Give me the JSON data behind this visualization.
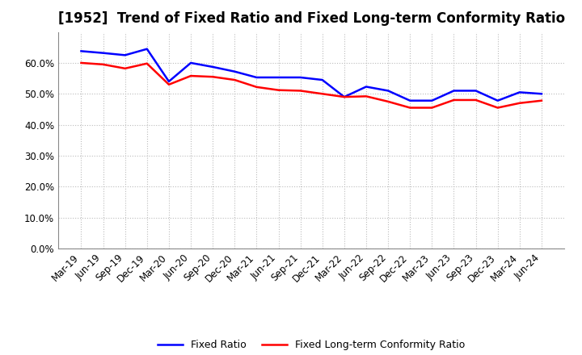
{
  "title": "[1952]  Trend of Fixed Ratio and Fixed Long-term Conformity Ratio",
  "x_labels": [
    "Mar-19",
    "Jun-19",
    "Sep-19",
    "Dec-19",
    "Mar-20",
    "Jun-20",
    "Sep-20",
    "Dec-20",
    "Mar-21",
    "Jun-21",
    "Sep-21",
    "Dec-21",
    "Mar-22",
    "Jun-22",
    "Sep-22",
    "Dec-22",
    "Mar-23",
    "Jun-23",
    "Sep-23",
    "Dec-23",
    "Mar-24",
    "Jun-24"
  ],
  "fixed_ratio": [
    0.638,
    0.632,
    0.625,
    0.645,
    0.54,
    0.6,
    0.587,
    0.572,
    0.553,
    0.553,
    0.553,
    0.545,
    0.49,
    0.523,
    0.51,
    0.478,
    0.478,
    0.51,
    0.51,
    0.478,
    0.505,
    0.5
  ],
  "fixed_lt_ratio": [
    0.6,
    0.595,
    0.582,
    0.598,
    0.53,
    0.558,
    0.555,
    0.545,
    0.522,
    0.512,
    0.51,
    0.5,
    0.49,
    0.492,
    0.475,
    0.455,
    0.455,
    0.48,
    0.48,
    0.455,
    0.47,
    0.478
  ],
  "fixed_ratio_color": "#0000ff",
  "fixed_lt_ratio_color": "#ff0000",
  "ylim": [
    0.0,
    0.7
  ],
  "yticks": [
    0.0,
    0.1,
    0.2,
    0.3,
    0.4,
    0.5,
    0.6
  ],
  "background_color": "#ffffff",
  "grid_major_color": "#bbbbbb",
  "grid_minor_color": "#cccccc",
  "title_fontsize": 12,
  "tick_fontsize": 8.5,
  "legend_fixed": "Fixed Ratio",
  "legend_lt": "Fixed Long-term Conformity Ratio"
}
